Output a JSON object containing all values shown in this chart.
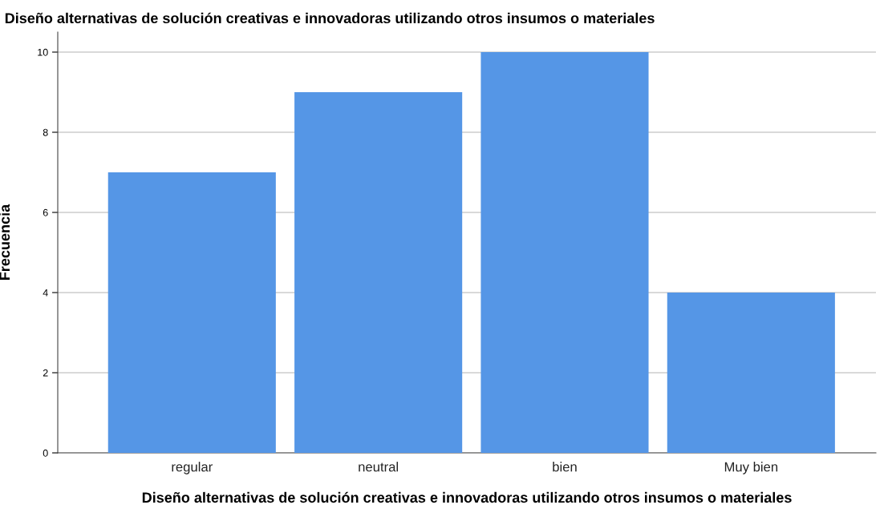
{
  "chart_data": {
    "type": "bar",
    "title": "Diseño alternativas de solución creativas e innovadoras utilizando otros insumos o materiales",
    "xlabel": "Diseño alternativas de solución creativas e innovadoras utilizando otros insumos o materiales",
    "ylabel": "Frecuencia",
    "categories": [
      "regular",
      "neutral",
      "bien",
      "Muy bien"
    ],
    "values": [
      7,
      9,
      10,
      4
    ],
    "color": "#5596e6",
    "ylim": [
      0,
      10.5
    ],
    "yticks": [
      0,
      2,
      4,
      6,
      8,
      10
    ],
    "grid": "y"
  }
}
